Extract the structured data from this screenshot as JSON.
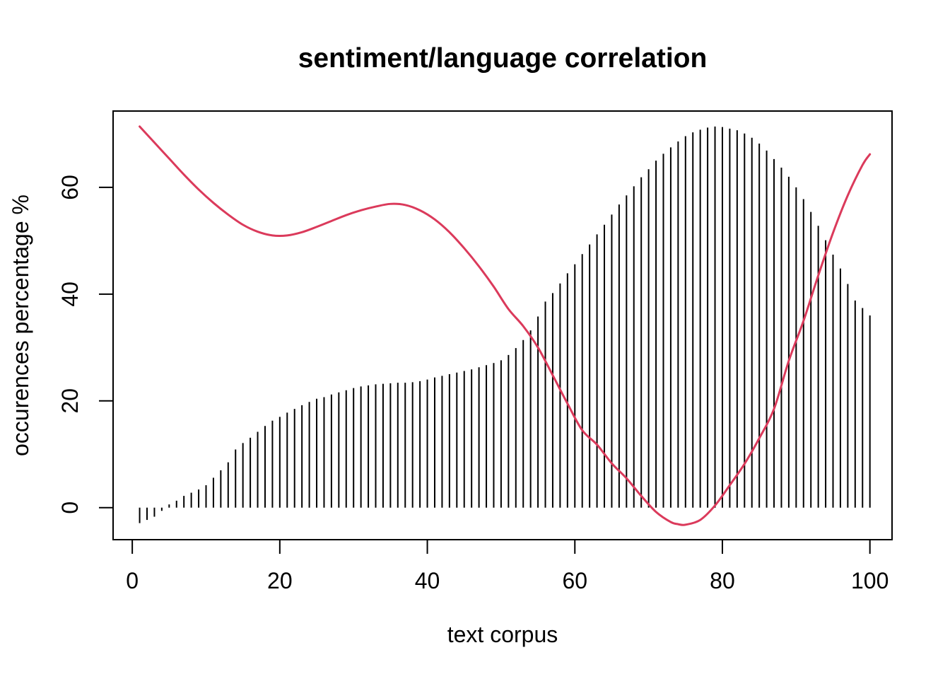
{
  "chart_data": {
    "type": "bar",
    "title": "sentiment/language correlation",
    "xlabel": "text corpus",
    "ylabel": "occurences percentage %",
    "xlim": [
      -2.6,
      103.0
    ],
    "ylim": [
      -6.0,
      74.3
    ],
    "x_ticks": [
      0,
      20,
      40,
      60,
      80,
      100
    ],
    "y_ticks": [
      0,
      20,
      40,
      60
    ],
    "grid": false,
    "legend": "none",
    "bars": {
      "color": "#000000",
      "x_start": 1,
      "x_step": 1,
      "values": [
        -2.9,
        -2.3,
        -1.7,
        -0.6,
        0.6,
        1.3,
        2.2,
        2.8,
        3.4,
        4.2,
        5.6,
        7.0,
        8.5,
        10.9,
        12.1,
        13.1,
        14.2,
        15.3,
        16.3,
        17.0,
        17.8,
        18.5,
        19.2,
        19.8,
        20.4,
        20.7,
        21.2,
        21.6,
        22.0,
        22.4,
        22.7,
        22.9,
        23.1,
        23.2,
        23.3,
        23.4,
        23.4,
        23.5,
        23.7,
        24.0,
        24.4,
        24.7,
        25.0,
        25.3,
        25.6,
        25.9,
        26.3,
        26.7,
        27.1,
        27.6,
        28.6,
        29.9,
        31.4,
        33.2,
        35.8,
        38.6,
        40.2,
        42.0,
        43.9,
        45.6,
        47.5,
        49.3,
        51.2,
        53.0,
        54.9,
        56.8,
        58.5,
        60.2,
        61.9,
        63.4,
        65.0,
        66.3,
        67.5,
        68.6,
        69.6,
        70.3,
        70.8,
        71.2,
        71.4,
        71.3,
        71.0,
        70.7,
        70.1,
        69.3,
        68.2,
        66.9,
        65.3,
        63.7,
        62.0,
        60.0,
        57.8,
        55.4,
        52.8,
        50.1,
        47.4,
        44.8,
        41.9,
        38.8,
        37.4,
        36.0
      ]
    },
    "line": {
      "color": "#DB3A5B",
      "width": 3,
      "points": [
        [
          1,
          71.4
        ],
        [
          3,
          68.4
        ],
        [
          5,
          65.4
        ],
        [
          7,
          62.4
        ],
        [
          9,
          59.6
        ],
        [
          11,
          57.1
        ],
        [
          13,
          54.9
        ],
        [
          15,
          53.0
        ],
        [
          17,
          51.7
        ],
        [
          19,
          51.0
        ],
        [
          21,
          51.0
        ],
        [
          23,
          51.6
        ],
        [
          25,
          52.6
        ],
        [
          27,
          53.7
        ],
        [
          29,
          54.8
        ],
        [
          31,
          55.7
        ],
        [
          33,
          56.4
        ],
        [
          35,
          56.9
        ],
        [
          37,
          56.7
        ],
        [
          39,
          55.7
        ],
        [
          41,
          54.0
        ],
        [
          43,
          51.6
        ],
        [
          45,
          48.6
        ],
        [
          47,
          45.2
        ],
        [
          49,
          41.4
        ],
        [
          51,
          37.2
        ],
        [
          53,
          34.0
        ],
        [
          55,
          30.0
        ],
        [
          57,
          24.8
        ],
        [
          59,
          19.5
        ],
        [
          61,
          14.5
        ],
        [
          63,
          11.8
        ],
        [
          65,
          8.3
        ],
        [
          67,
          5.5
        ],
        [
          69,
          2.2
        ],
        [
          71,
          -0.8
        ],
        [
          73,
          -2.7
        ],
        [
          74,
          -3.1
        ],
        [
          75,
          -3.2
        ],
        [
          77,
          -2.3
        ],
        [
          79,
          0.4
        ],
        [
          81,
          4.2
        ],
        [
          83,
          8.2
        ],
        [
          85,
          13.0
        ],
        [
          87,
          18.5
        ],
        [
          89,
          27.5
        ],
        [
          91,
          35.0
        ],
        [
          93,
          43.5
        ],
        [
          95,
          51.5
        ],
        [
          97,
          58.5
        ],
        [
          99,
          64.2
        ],
        [
          100,
          66.2
        ]
      ]
    },
    "frame_color": "#000000",
    "background": "#FFFFFF"
  }
}
